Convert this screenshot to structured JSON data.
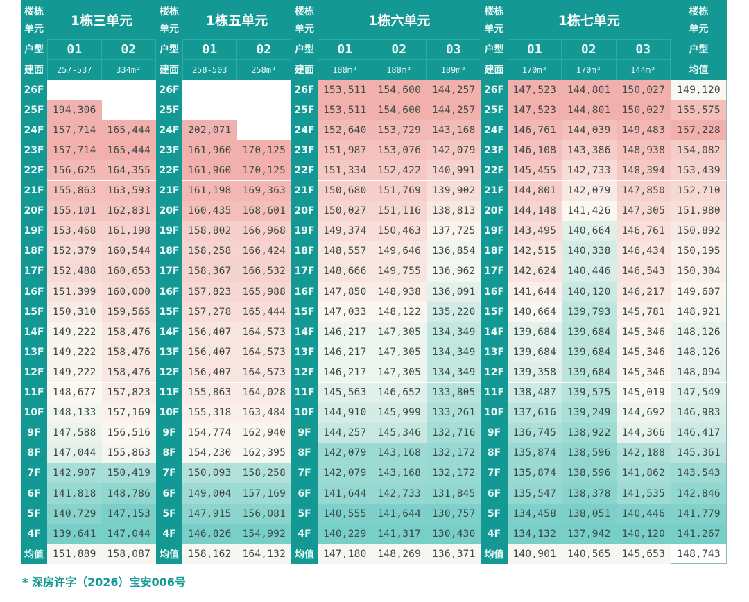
{
  "table": {
    "label_col": {
      "building_unit": [
        "楼栋",
        "单元"
      ],
      "unit_type": "户型",
      "area": "建面",
      "avg_area_label": "均值",
      "avg_row": "均值"
    },
    "floors": [
      "26F",
      "25F",
      "24F",
      "23F",
      "22F",
      "21F",
      "20F",
      "19F",
      "18F",
      "17F",
      "16F",
      "15F",
      "14F",
      "13F",
      "12F",
      "11F",
      "10F",
      "9F",
      "8F",
      "7F",
      "6F",
      "5F",
      "4F"
    ],
    "units": [
      {
        "title": "1栋三单元",
        "columns": [
          {
            "type": "01",
            "area": "257-537",
            "values": [
              "",
              "194,306",
              "157,714",
              "157,714",
              "156,625",
              "155,863",
              "155,101",
              "153,468",
              "152,379",
              "152,488",
              "151,399",
              "150,310",
              "149,222",
              "149,222",
              "149,222",
              "148,677",
              "148,133",
              "147,588",
              "147,044",
              "142,907",
              "141,818",
              "140,729",
              "139,641"
            ],
            "avg": "151,889"
          },
          {
            "type": "02",
            "area": "334m²",
            "values": [
              "",
              "",
              "165,444",
              "165,444",
              "164,355",
              "163,593",
              "162,831",
              "161,198",
              "160,544",
              "160,653",
              "160,000",
              "159,565",
              "158,476",
              "158,476",
              "158,476",
              "157,823",
              "157,169",
              "156,516",
              "155,863",
              "150,419",
              "148,786",
              "147,153",
              "147,044"
            ],
            "avg": "158,087"
          }
        ]
      },
      {
        "title": "1栋五单元",
        "columns": [
          {
            "type": "01",
            "area": "258-503",
            "values": [
              "",
              "",
              "202,071",
              "161,960",
              "161,960",
              "161,198",
              "160,435",
              "158,802",
              "158,258",
              "158,367",
              "157,823",
              "157,278",
              "156,407",
              "156,407",
              "156,407",
              "155,863",
              "155,318",
              "154,774",
              "154,230",
              "150,093",
              "149,004",
              "147,915",
              "146,826"
            ],
            "avg": "158,162"
          },
          {
            "type": "02",
            "area": "258m²",
            "values": [
              "",
              "",
              "",
              "170,125",
              "170,125",
              "169,363",
              "168,601",
              "166,968",
              "166,424",
              "166,532",
              "165,988",
              "165,444",
              "164,573",
              "164,573",
              "164,573",
              "164,028",
              "163,484",
              "162,940",
              "162,395",
              "158,258",
              "157,169",
              "156,081",
              "154,992"
            ],
            "avg": "164,132"
          }
        ]
      },
      {
        "title": "1栋六单元",
        "columns": [
          {
            "type": "01",
            "area": "188m²",
            "values": [
              "153,511",
              "153,511",
              "152,640",
              "151,987",
              "151,334",
              "150,680",
              "150,027",
              "149,374",
              "148,557",
              "148,666",
              "147,850",
              "147,033",
              "146,217",
              "146,217",
              "146,217",
              "145,563",
              "144,910",
              "144,257",
              "142,079",
              "142,079",
              "141,644",
              "140,555",
              "140,229"
            ],
            "avg": "147,180"
          },
          {
            "type": "02",
            "area": "188m²",
            "values": [
              "154,600",
              "154,600",
              "153,729",
              "153,076",
              "152,422",
              "151,769",
              "151,116",
              "150,463",
              "149,646",
              "149,755",
              "148,938",
              "148,122",
              "147,305",
              "147,305",
              "147,305",
              "146,652",
              "145,999",
              "145,346",
              "143,168",
              "143,168",
              "142,733",
              "141,644",
              "141,317"
            ],
            "avg": "148,269"
          },
          {
            "type": "03",
            "area": "189m²",
            "values": [
              "144,257",
              "144,257",
              "143,168",
              "142,079",
              "140,991",
              "139,902",
              "138,813",
              "137,725",
              "136,854",
              "136,962",
              "136,091",
              "135,220",
              "134,349",
              "134,349",
              "134,349",
              "133,805",
              "133,261",
              "132,716",
              "132,172",
              "132,172",
              "131,845",
              "130,757",
              "130,430"
            ],
            "avg": "136,371"
          }
        ]
      },
      {
        "title": "1栋七单元",
        "columns": [
          {
            "type": "01",
            "area": "170m²",
            "values": [
              "147,523",
              "147,523",
              "146,761",
              "146,108",
              "145,455",
              "144,801",
              "144,148",
              "143,495",
              "142,515",
              "142,624",
              "141,644",
              "140,664",
              "139,684",
              "139,684",
              "139,358",
              "138,487",
              "137,616",
              "136,745",
              "135,874",
              "135,874",
              "135,547",
              "134,458",
              "134,132"
            ],
            "avg": "140,901"
          },
          {
            "type": "02",
            "area": "170m²",
            "values": [
              "144,801",
              "144,801",
              "144,039",
              "143,386",
              "142,733",
              "142,079",
              "141,426",
              "140,664",
              "140,338",
              "140,446",
              "140,120",
              "139,793",
              "139,684",
              "139,684",
              "139,684",
              "139,575",
              "139,249",
              "138,922",
              "138,596",
              "138,596",
              "138,378",
              "138,051",
              "137,942"
            ],
            "avg": "140,565"
          },
          {
            "type": "03",
            "area": "144m²",
            "values": [
              "150,027",
              "150,027",
              "149,483",
              "148,938",
              "148,394",
              "147,850",
              "147,305",
              "146,761",
              "146,434",
              "146,543",
              "146,217",
              "145,781",
              "145,346",
              "145,346",
              "145,346",
              "145,019",
              "144,692",
              "144,366",
              "142,188",
              "141,862",
              "141,535",
              "140,446",
              "140,120"
            ],
            "avg": "145,653"
          }
        ]
      }
    ],
    "floor_average": {
      "values": [
        "149,120",
        "155,575",
        "157,228",
        "154,082",
        "153,439",
        "152,710",
        "151,980",
        "150,892",
        "150,195",
        "150,304",
        "149,607",
        "148,921",
        "148,126",
        "148,126",
        "148,094",
        "147,549",
        "146,983",
        "146,417",
        "145,361",
        "143,543",
        "142,846",
        "141,779",
        "141,267"
      ],
      "avg": "148,743"
    }
  },
  "colors": {
    "header_teal": "#149894",
    "high_pink": "#f2b7b4",
    "low_teal": "#7fd2cb",
    "neutral": "#fbf8f2"
  },
  "footnote": "* 深房许字（2026）宝安006号"
}
